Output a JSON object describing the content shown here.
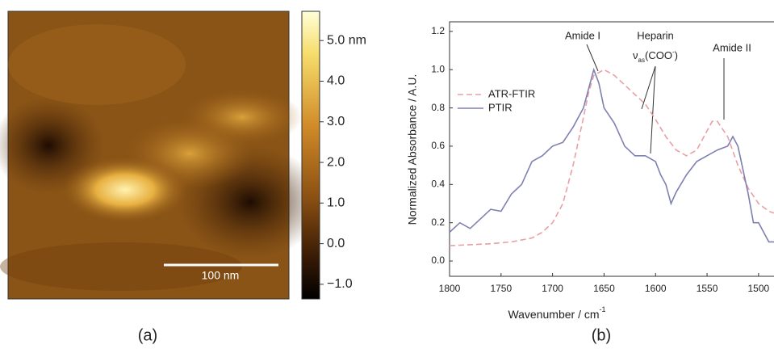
{
  "chart_data": [
    {
      "type": "image",
      "panel_label": "(a)",
      "scale_bar": "100 nm",
      "clim": [
        -1.36,
        5.72
      ],
      "colorbar_ticks": [
        {
          "value": 5,
          "label": "5.0 nm"
        },
        {
          "value": 4,
          "label": "4.0"
        },
        {
          "value": 3,
          "label": "3.0"
        },
        {
          "value": 2,
          "label": "2.0"
        },
        {
          "value": 1,
          "label": "1.0"
        },
        {
          "value": 0,
          "label": "0.0"
        },
        {
          "value": -1,
          "label": "−1.0"
        }
      ]
    },
    {
      "type": "line",
      "panel_label": "(b)",
      "xlabel": "Wavenumber / cm",
      "xlabel_sup": "-1",
      "ylabel": "Normalized Absorbance / A.U.",
      "xlim": [
        1800,
        1485
      ],
      "ylim": [
        -0.08,
        1.25
      ],
      "xticks": [
        1800,
        1750,
        1700,
        1650,
        1600,
        1550,
        1500
      ],
      "yticks": [
        {
          "value": 0,
          "label": "0.0"
        },
        0.2,
        0.4,
        0.6,
        0.8,
        {
          "value": 1,
          "label": "1.0"
        },
        1.2
      ],
      "legend": "upper left",
      "annotations": {
        "amide1": "Amide I",
        "heparin": "Heparin",
        "heparin_mode": [
          "ν",
          "as",
          "(COO",
          "-",
          ")"
        ],
        "amide2": "Amide II"
      },
      "series": [
        {
          "name": "ATR-FTIR",
          "color": "#e8a0a4",
          "linestyle": "dashed",
          "x": [
            1800,
            1780,
            1760,
            1740,
            1720,
            1710,
            1700,
            1690,
            1680,
            1670,
            1665,
            1660,
            1650,
            1640,
            1630,
            1620,
            1610,
            1600,
            1590,
            1580,
            1570,
            1560,
            1550,
            1545,
            1540,
            1530,
            1520,
            1510,
            1500,
            1490,
            1485
          ],
          "values": [
            0.08,
            0.085,
            0.09,
            0.1,
            0.12,
            0.15,
            0.2,
            0.3,
            0.5,
            0.75,
            0.88,
            0.97,
            1.0,
            0.97,
            0.92,
            0.87,
            0.82,
            0.74,
            0.65,
            0.58,
            0.55,
            0.58,
            0.68,
            0.73,
            0.73,
            0.65,
            0.5,
            0.38,
            0.3,
            0.26,
            0.25
          ]
        },
        {
          "name": "PTIR",
          "color": "#7e80b2",
          "linestyle": "solid",
          "x": [
            1800,
            1790,
            1780,
            1770,
            1760,
            1750,
            1740,
            1730,
            1720,
            1710,
            1700,
            1690,
            1680,
            1670,
            1660,
            1655,
            1650,
            1640,
            1630,
            1620,
            1610,
            1600,
            1595,
            1590,
            1585,
            1580,
            1570,
            1560,
            1550,
            1540,
            1530,
            1525,
            1520,
            1510,
            1505,
            1500,
            1495,
            1490,
            1485
          ],
          "values": [
            0.15,
            0.2,
            0.17,
            0.22,
            0.27,
            0.26,
            0.35,
            0.4,
            0.52,
            0.55,
            0.6,
            0.62,
            0.7,
            0.8,
            1.0,
            0.93,
            0.8,
            0.72,
            0.6,
            0.55,
            0.55,
            0.52,
            0.45,
            0.4,
            0.3,
            0.36,
            0.45,
            0.52,
            0.55,
            0.58,
            0.6,
            0.65,
            0.6,
            0.35,
            0.2,
            0.2,
            0.15,
            0.1,
            0.1
          ]
        }
      ]
    }
  ]
}
